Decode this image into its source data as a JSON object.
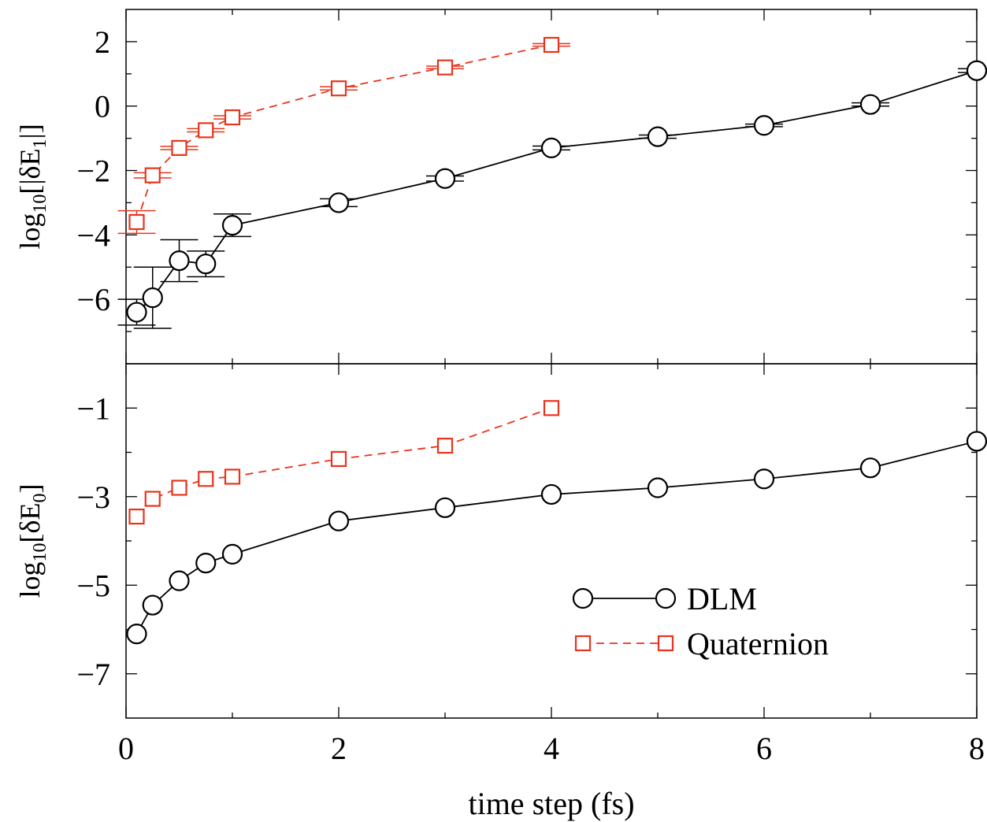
{
  "chart_data": [
    {
      "type": "line",
      "panel": "top",
      "xlabel": "",
      "ylabel": "log10[|δE1|]",
      "ylabel_parts": {
        "pre": "log",
        "sub1": "10",
        "mid": "[|δE",
        "sub2": "1",
        "post": "|]"
      },
      "xlim": [
        0,
        8
      ],
      "ylim": [
        -8,
        3
      ],
      "yticks": [
        2,
        0,
        -2,
        -4,
        -6
      ],
      "ytick_labels": [
        "2",
        "0",
        "−2",
        "−4",
        "−6"
      ],
      "series": [
        {
          "name": "DLM",
          "marker": "circle",
          "line": "solid",
          "color": "#000000",
          "x": [
            0.1,
            0.25,
            0.5,
            0.75,
            1,
            2,
            3,
            4,
            5,
            6,
            7,
            8
          ],
          "y": [
            -6.4,
            -5.95,
            -4.8,
            -4.9,
            -3.7,
            -3.0,
            -2.25,
            -1.3,
            -0.95,
            -0.6,
            0.05,
            1.1
          ],
          "err": [
            0.4,
            0.95,
            0.65,
            0.4,
            0.35,
            0.12,
            0.08,
            0.06,
            0.05,
            0.04,
            0.05,
            0.06
          ]
        },
        {
          "name": "Quaternion",
          "marker": "square",
          "line": "dashed",
          "color": "#e8341c",
          "x": [
            0.1,
            0.25,
            0.5,
            0.75,
            1,
            2,
            3,
            4
          ],
          "y": [
            -3.6,
            -2.15,
            -1.3,
            -0.75,
            -0.35,
            0.55,
            1.2,
            1.9
          ],
          "err": [
            0.35,
            0.08,
            0.05,
            0.05,
            0.05,
            0.05,
            0.04,
            0.04
          ]
        }
      ]
    },
    {
      "type": "line",
      "panel": "bottom",
      "xlabel": "time step (fs)",
      "ylabel": "log10[δE0]",
      "ylabel_parts": {
        "pre": "log",
        "sub1": "10",
        "mid": "[δE",
        "sub2": "0",
        "post": "]"
      },
      "xlim": [
        0,
        8
      ],
      "ylim": [
        -8,
        0
      ],
      "xticks": [
        0,
        2,
        4,
        6,
        8
      ],
      "xtick_labels": [
        "0",
        "2",
        "4",
        "6",
        "8"
      ],
      "yticks": [
        -1,
        -3,
        -5,
        -7
      ],
      "ytick_labels": [
        "−1",
        "−3",
        "−5",
        "−7"
      ],
      "legend": "lower-right",
      "series": [
        {
          "name": "DLM",
          "marker": "circle",
          "line": "solid",
          "color": "#000000",
          "x": [
            0.1,
            0.25,
            0.5,
            0.75,
            1,
            2,
            3,
            4,
            5,
            6,
            7,
            8
          ],
          "y": [
            -6.1,
            -5.45,
            -4.9,
            -4.5,
            -4.3,
            -3.55,
            -3.25,
            -2.95,
            -2.8,
            -2.6,
            -2.35,
            -1.75
          ]
        },
        {
          "name": "Quaternion",
          "marker": "square",
          "line": "dashed",
          "color": "#e8341c",
          "x": [
            0.1,
            0.25,
            0.5,
            0.75,
            1,
            2,
            3,
            4
          ],
          "y": [
            -3.45,
            -3.05,
            -2.8,
            -2.6,
            -2.55,
            -2.15,
            -1.85,
            -1.0
          ]
        }
      ]
    }
  ]
}
